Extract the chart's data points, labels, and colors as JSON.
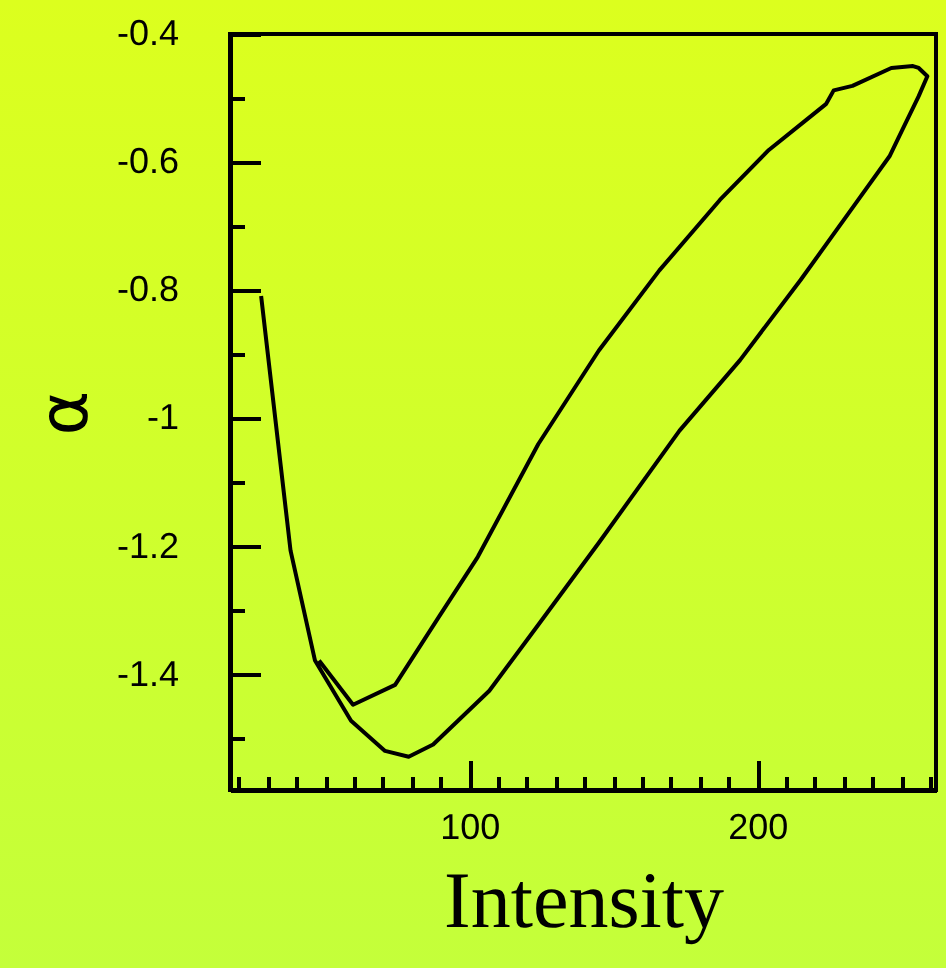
{
  "chart_data": {
    "type": "line",
    "xlabel": "Intensity",
    "ylabel": "α",
    "x": [
      27.8,
      38,
      46.5,
      59,
      70.8,
      79,
      87.5,
      107,
      124,
      145,
      173,
      194,
      215,
      235,
      246,
      249.3,
      256,
      259,
      256,
      254,
      246.5,
      233,
      226.5,
      223.9,
      217,
      204,
      187,
      166,
      145,
      124,
      103,
      89.6,
      74.3,
      59.7,
      47.9
    ],
    "series": [
      {
        "color": "#000000",
        "values": [
          -0.809,
          -1.206,
          -1.378,
          -1.472,
          -1.519,
          -1.528,
          -1.509,
          -1.425,
          -1.322,
          -1.194,
          -1.019,
          -0.909,
          -0.784,
          -0.659,
          -0.59,
          -0.559,
          -0.497,
          -0.466,
          -0.453,
          -0.45,
          -0.453,
          -0.481,
          -0.488,
          -0.509,
          -0.534,
          -0.581,
          -0.659,
          -0.769,
          -0.894,
          -1.04,
          -1.216,
          -1.309,
          -1.416,
          -1.447,
          -1.378
        ]
      }
    ],
    "xlim": [
      17,
      262
    ],
    "ylim": [
      -1.58,
      -0.4
    ],
    "xticks": [
      {
        "value": 20,
        "label": null
      },
      {
        "value": 30,
        "label": null
      },
      {
        "value": 40,
        "label": null
      },
      {
        "value": 50,
        "label": null
      },
      {
        "value": 60,
        "label": null
      },
      {
        "value": 70,
        "label": null
      },
      {
        "value": 80,
        "label": null
      },
      {
        "value": 90,
        "label": null
      },
      100,
      {
        "value": 110,
        "label": null
      },
      {
        "value": 120,
        "label": null
      },
      {
        "value": 130,
        "label": null
      },
      {
        "value": 140,
        "label": null
      },
      {
        "value": 150,
        "label": null
      },
      {
        "value": 160,
        "label": null
      },
      {
        "value": 170,
        "label": null
      },
      {
        "value": 180,
        "label": null
      },
      {
        "value": 190,
        "label": null
      },
      200,
      {
        "value": 210,
        "label": null
      },
      {
        "value": 220,
        "label": null
      },
      {
        "value": 230,
        "label": null
      },
      {
        "value": 240,
        "label": null
      },
      {
        "value": 250,
        "label": null
      },
      {
        "value": 260,
        "label": null
      }
    ],
    "yticks": [
      -0.4,
      {
        "value": -0.5,
        "label": null
      },
      -0.6,
      {
        "value": -0.7,
        "label": null
      },
      -0.8,
      {
        "value": -0.9,
        "label": null
      },
      -1,
      {
        "value": -1.1,
        "label": null
      },
      -1.2,
      {
        "value": -1.3,
        "label": null
      },
      -1.4,
      {
        "value": -1.5,
        "label": null
      }
    ],
    "grid": false,
    "marker": "none",
    "line_style": "solid"
  }
}
